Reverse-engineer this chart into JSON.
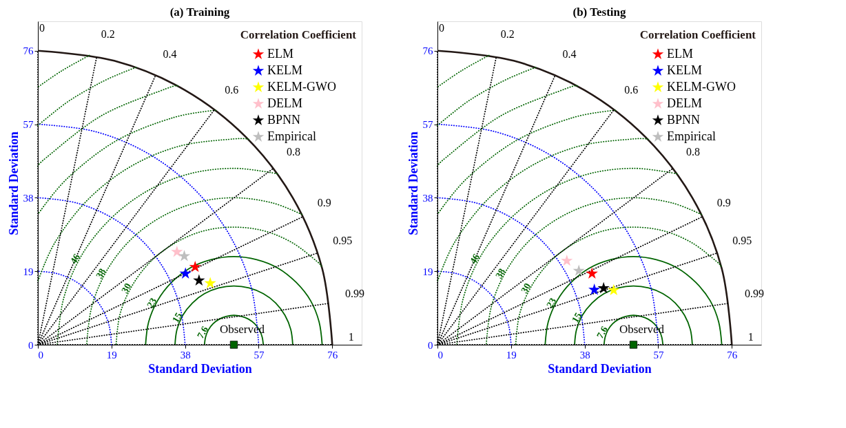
{
  "chart_data": [
    {
      "type": "scatter",
      "title": "(a) Training",
      "xlabel": "Standard Deviation",
      "ylabel": "Standard Deviation",
      "xlim": [
        0,
        83.6
      ],
      "ylim": [
        0,
        83.6
      ],
      "xticks": [
        0,
        19,
        38,
        57,
        76
      ],
      "yticks": [
        0,
        19,
        38,
        57,
        76
      ],
      "legend": "top right",
      "legend_title": "Correlation Coefficient",
      "marker": "star",
      "series": [
        {
          "type": "line",
          "marker": "none",
          "color": "#0000ff",
          "line_style": "dotted",
          "x": [
            19,
            18.4,
            16.5,
            13.4,
            9.5,
            4.9,
            0
          ],
          "values": [
            0,
            4.9,
            9.5,
            13.4,
            16.5,
            18.4,
            19
          ]
        },
        {
          "type": "line",
          "marker": "none",
          "color": "#0000ff",
          "line_style": "dotted",
          "x": [
            38,
            36.7,
            32.9,
            26.9,
            19,
            9.8,
            0
          ],
          "values": [
            0,
            9.8,
            19,
            26.9,
            32.9,
            36.7,
            38
          ]
        },
        {
          "type": "line",
          "marker": "none",
          "color": "#0000ff",
          "line_style": "dotted",
          "x": [
            57,
            55.1,
            49.4,
            40.3,
            28.5,
            14.8,
            0
          ],
          "values": [
            0,
            14.8,
            28.5,
            40.3,
            49.4,
            55.1,
            57
          ]
        },
        {
          "type": "line",
          "marker": "none",
          "name": "7.6",
          "color": "#006400",
          "line_style": "solid",
          "x": [
            58.2,
            57.9,
            57.2,
            56.0,
            54.4,
            52.6,
            50.6,
            48.6,
            46.8,
            45.2,
            44.0,
            43.3,
            43.0
          ],
          "values": [
            0,
            2.0,
            3.8,
            5.4,
            6.6,
            7.3,
            7.6,
            7.3,
            6.6,
            5.4,
            3.8,
            2.0,
            0
          ]
        },
        {
          "type": "line",
          "marker": "none",
          "name": "15",
          "color": "#006400",
          "line_style": "solid",
          "x": [
            65.8,
            65.3,
            63.8,
            61.4,
            58.2,
            54.5,
            50.6,
            46.7,
            43.0,
            39.9,
            37.4,
            35.9,
            35.4
          ],
          "values": [
            0,
            3.9,
            7.6,
            10.8,
            13.2,
            14.7,
            15.2,
            14.7,
            13.2,
            10.8,
            7.6,
            3.9,
            0
          ]
        },
        {
          "type": "line",
          "marker": "none",
          "name": "23",
          "color": "#006400",
          "line_style": "solid",
          "x": [
            73.4,
            72.6,
            70.4,
            66.7,
            62.0,
            56.5,
            50.6,
            44.7,
            39.2,
            34.5,
            30.9,
            28.6,
            27.8
          ],
          "values": [
            0,
            5.9,
            11.4,
            16.1,
            19.8,
            22.0,
            22.8,
            22.0,
            19.8,
            16.1,
            11.4,
            5.9,
            0
          ]
        },
        {
          "type": "line",
          "marker": "none",
          "name": "30",
          "color": "#006400",
          "line_style": "dotted",
          "x": [
            73.2,
            72.1,
            65.8,
            58.5,
            50.6,
            42.7,
            35.4,
            29.1,
            24.3,
            21.2,
            20.2
          ],
          "values": [
            20.3,
            21.5,
            26.3,
            29.4,
            30.4,
            29.4,
            26.3,
            21.5,
            15.2,
            7.9,
            0
          ]
        },
        {
          "type": "line",
          "marker": "none",
          "name": "38",
          "color": "#006400",
          "line_style": "dotted",
          "x": [
            68.1,
            60.4,
            50.6,
            40.8,
            31.6,
            23.7,
            17.7,
            13.9,
            12.6
          ],
          "values": [
            33.7,
            36.7,
            38,
            36.7,
            32.9,
            26.9,
            19,
            9.8,
            0
          ]
        },
        {
          "type": "line",
          "marker": "none",
          "name": "46",
          "color": "#006400",
          "line_style": "dotted",
          "x": [
            61.8,
            50.6,
            38.8,
            27.8,
            18.4,
            11.1,
            6.6,
            5.0
          ],
          "values": [
            44.2,
            45.6,
            44.1,
            39.5,
            32.2,
            22.8,
            11.8,
            0
          ]
        },
        {
          "type": "line",
          "marker": "none",
          "color": "#006400",
          "line_style": "dotted",
          "x": [
            54.4,
            50.6,
            36.8,
            24.0,
            13.0,
            4.5,
            0
          ],
          "values": [
            53.1,
            53.2,
            51.4,
            46.1,
            37.6,
            26.6,
            16.4
          ]
        },
        {
          "type": "line",
          "marker": "none",
          "color": "#006400",
          "line_style": "dotted",
          "x": [
            45.9,
            34.9,
            20.2,
            7.6,
            0
          ],
          "values": [
            60.6,
            58.7,
            52.7,
            43.0,
            33.7
          ]
        },
        {
          "type": "line",
          "marker": "none",
          "color": "#006400",
          "line_style": "dotted",
          "x": [
            36.1,
            32.9,
            16.4,
            2.2,
            0
          ],
          "values": [
            66.9,
            66.1,
            59.2,
            48.4,
            46.0
          ]
        },
        {
          "type": "line",
          "marker": "none",
          "color": "#006400",
          "line_style": "dotted",
          "x": [
            25.3,
            18.5,
            12.6,
            7.0,
            0
          ],
          "values": [
            71.7,
            68.9,
            65.8,
            62.3,
            56.7
          ]
        },
        {
          "type": "line",
          "marker": "none",
          "color": "#006400",
          "line_style": "dotted",
          "x": [
            13.3,
            6.3,
            0
          ],
          "values": [
            74.8,
            70.9,
            66.6
          ]
        },
        {
          "type": "line",
          "marker": "none",
          "name": "0",
          "color": "#000000",
          "line_style": "dotted",
          "x": [
            0,
            0
          ],
          "values": [
            0,
            76
          ]
        },
        {
          "type": "line",
          "marker": "none",
          "name": "0.2",
          "color": "#000000",
          "line_style": "dotted",
          "x": [
            0,
            15.2
          ],
          "values": [
            0,
            74.5
          ]
        },
        {
          "type": "line",
          "marker": "none",
          "name": "0.4",
          "color": "#000000",
          "line_style": "dotted",
          "x": [
            0,
            30.4
          ],
          "values": [
            0,
            69.7
          ]
        },
        {
          "type": "line",
          "marker": "none",
          "name": "0.6",
          "color": "#000000",
          "line_style": "dotted",
          "x": [
            0,
            45.6
          ],
          "values": [
            0,
            60.8
          ]
        },
        {
          "type": "line",
          "marker": "none",
          "name": "0.8",
          "color": "#000000",
          "line_style": "dotted",
          "x": [
            0,
            60.8
          ],
          "values": [
            0,
            45.6
          ]
        },
        {
          "type": "line",
          "marker": "none",
          "name": "0.9",
          "color": "#000000",
          "line_style": "dotted",
          "x": [
            0,
            68.4
          ],
          "values": [
            0,
            33.1
          ]
        },
        {
          "type": "line",
          "marker": "none",
          "name": "0.95",
          "color": "#000000",
          "line_style": "dotted",
          "x": [
            0,
            72.2
          ],
          "values": [
            0,
            23.7
          ]
        },
        {
          "type": "line",
          "marker": "none",
          "name": "0.99",
          "color": "#000000",
          "line_style": "dotted",
          "x": [
            0,
            75.2
          ],
          "values": [
            0,
            10.7
          ]
        },
        {
          "type": "line",
          "marker": "none",
          "name": "1",
          "color": "#000000",
          "line_style": "dotted",
          "x": [
            0,
            76
          ],
          "values": [
            0,
            0
          ]
        },
        {
          "type": "line",
          "marker": "none",
          "color": "#231815",
          "line_style": "solid",
          "x": [
            76,
            73.4,
            65.8,
            53.7,
            38,
            19.7,
            0
          ],
          "values": [
            0,
            19.7,
            38,
            53.7,
            65.8,
            73.4,
            76
          ]
        },
        {
          "name": "ELM",
          "color": "#ff0000",
          "x": [
            40.6
          ],
          "values": [
            20.1
          ]
        },
        {
          "name": "KELM",
          "color": "#0000ff",
          "x": [
            38.1
          ],
          "values": [
            18.4
          ]
        },
        {
          "name": "KELM-GWO",
          "color": "#ffff00",
          "x": [
            44.5
          ],
          "values": [
            15.9
          ]
        },
        {
          "name": "DELM",
          "color": "#ffc0cb",
          "x": [
            35.9
          ],
          "values": [
            24.0
          ]
        },
        {
          "name": "BPNN",
          "color": "#000000",
          "x": [
            41.6
          ],
          "values": [
            16.6
          ]
        },
        {
          "name": "Empirical",
          "color": "#bebebe",
          "x": [
            37.8
          ],
          "values": [
            22.9
          ]
        },
        {
          "name": "Observed",
          "color": "#006400",
          "marker": "square",
          "x": [
            50.6
          ],
          "values": [
            0
          ]
        }
      ]
    },
    {
      "type": "scatter",
      "title": "(b) Testing",
      "xlabel": "Standard Deviation",
      "ylabel": "Standard Deviation",
      "xlim": [
        0,
        83.6
      ],
      "ylim": [
        0,
        83.6
      ],
      "xticks": [
        0,
        19,
        38,
        57,
        76
      ],
      "yticks": [
        0,
        19,
        38,
        57,
        76
      ],
      "legend": "top right",
      "legend_title": "Correlation Coefficient",
      "marker": "star",
      "series": [
        {
          "type": "line",
          "marker": "none",
          "color": "#0000ff",
          "line_style": "dotted",
          "x": [
            19,
            18.4,
            16.5,
            13.4,
            9.5,
            4.9,
            0
          ],
          "values": [
            0,
            4.9,
            9.5,
            13.4,
            16.5,
            18.4,
            19
          ]
        },
        {
          "type": "line",
          "marker": "none",
          "color": "#0000ff",
          "line_style": "dotted",
          "x": [
            38,
            36.7,
            32.9,
            26.9,
            19,
            9.8,
            0
          ],
          "values": [
            0,
            9.8,
            19,
            26.9,
            32.9,
            36.7,
            38
          ]
        },
        {
          "type": "line",
          "marker": "none",
          "color": "#0000ff",
          "line_style": "dotted",
          "x": [
            57,
            55.1,
            49.4,
            40.3,
            28.5,
            14.8,
            0
          ],
          "values": [
            0,
            14.8,
            28.5,
            40.3,
            49.4,
            55.1,
            57
          ]
        },
        {
          "type": "line",
          "marker": "none",
          "name": "7.6",
          "color": "#006400",
          "line_style": "solid",
          "x": [
            58.2,
            57.9,
            57.2,
            56.0,
            54.4,
            52.6,
            50.6,
            48.6,
            46.8,
            45.2,
            44.0,
            43.3,
            43.0
          ],
          "values": [
            0,
            2.0,
            3.8,
            5.4,
            6.6,
            7.3,
            7.6,
            7.3,
            6.6,
            5.4,
            3.8,
            2.0,
            0
          ]
        },
        {
          "type": "line",
          "marker": "none",
          "name": "15",
          "color": "#006400",
          "line_style": "solid",
          "x": [
            65.8,
            65.3,
            63.8,
            61.4,
            58.2,
            54.5,
            50.6,
            46.7,
            43.0,
            39.9,
            37.4,
            35.9,
            35.4
          ],
          "values": [
            0,
            3.9,
            7.6,
            10.8,
            13.2,
            14.7,
            15.2,
            14.7,
            13.2,
            10.8,
            7.6,
            3.9,
            0
          ]
        },
        {
          "type": "line",
          "marker": "none",
          "name": "23",
          "color": "#006400",
          "line_style": "solid",
          "x": [
            73.4,
            72.6,
            70.4,
            66.7,
            62.0,
            56.5,
            50.6,
            44.7,
            39.2,
            34.5,
            30.9,
            28.6,
            27.8
          ],
          "values": [
            0,
            5.9,
            11.4,
            16.1,
            19.8,
            22.0,
            22.8,
            22.0,
            19.8,
            16.1,
            11.4,
            5.9,
            0
          ]
        },
        {
          "type": "line",
          "marker": "none",
          "name": "30",
          "color": "#006400",
          "line_style": "dotted",
          "x": [
            73.2,
            72.1,
            65.8,
            58.5,
            50.6,
            42.7,
            35.4,
            29.1,
            24.3,
            21.2,
            20.2
          ],
          "values": [
            20.3,
            21.5,
            26.3,
            29.4,
            30.4,
            29.4,
            26.3,
            21.5,
            15.2,
            7.9,
            0
          ]
        },
        {
          "type": "line",
          "marker": "none",
          "name": "38",
          "color": "#006400",
          "line_style": "dotted",
          "x": [
            68.1,
            60.4,
            50.6,
            40.8,
            31.6,
            23.7,
            17.7,
            13.9,
            12.6
          ],
          "values": [
            33.7,
            36.7,
            38,
            36.7,
            32.9,
            26.9,
            19,
            9.8,
            0
          ]
        },
        {
          "type": "line",
          "marker": "none",
          "name": "46",
          "color": "#006400",
          "line_style": "dotted",
          "x": [
            61.8,
            50.6,
            38.8,
            27.8,
            18.4,
            11.1,
            6.6,
            5.0
          ],
          "values": [
            44.2,
            45.6,
            44.1,
            39.5,
            32.2,
            22.8,
            11.8,
            0
          ]
        },
        {
          "type": "line",
          "marker": "none",
          "color": "#006400",
          "line_style": "dotted",
          "x": [
            54.4,
            50.6,
            36.8,
            24.0,
            13.0,
            4.5,
            0
          ],
          "values": [
            53.1,
            53.2,
            51.4,
            46.1,
            37.6,
            26.6,
            16.4
          ]
        },
        {
          "type": "line",
          "marker": "none",
          "color": "#006400",
          "line_style": "dotted",
          "x": [
            45.9,
            34.9,
            20.2,
            7.6,
            0
          ],
          "values": [
            60.6,
            58.7,
            52.7,
            43.0,
            33.7
          ]
        },
        {
          "type": "line",
          "marker": "none",
          "color": "#006400",
          "line_style": "dotted",
          "x": [
            36.1,
            32.9,
            16.4,
            2.2,
            0
          ],
          "values": [
            66.9,
            66.1,
            59.2,
            48.4,
            46.0
          ]
        },
        {
          "type": "line",
          "marker": "none",
          "color": "#006400",
          "line_style": "dotted",
          "x": [
            25.3,
            18.5,
            12.6,
            7.0,
            0
          ],
          "values": [
            71.7,
            68.9,
            65.8,
            62.3,
            56.7
          ]
        },
        {
          "type": "line",
          "marker": "none",
          "color": "#006400",
          "line_style": "dotted",
          "x": [
            13.3,
            6.3,
            0
          ],
          "values": [
            74.8,
            70.9,
            66.6
          ]
        },
        {
          "type": "line",
          "marker": "none",
          "name": "0",
          "color": "#000000",
          "line_style": "dotted",
          "x": [
            0,
            0
          ],
          "values": [
            0,
            76
          ]
        },
        {
          "type": "line",
          "marker": "none",
          "name": "0.2",
          "color": "#000000",
          "line_style": "dotted",
          "x": [
            0,
            15.2
          ],
          "values": [
            0,
            74.5
          ]
        },
        {
          "type": "line",
          "marker": "none",
          "name": "0.4",
          "color": "#000000",
          "line_style": "dotted",
          "x": [
            0,
            30.4
          ],
          "values": [
            0,
            69.7
          ]
        },
        {
          "type": "line",
          "marker": "none",
          "name": "0.6",
          "color": "#000000",
          "line_style": "dotted",
          "x": [
            0,
            45.6
          ],
          "values": [
            0,
            60.8
          ]
        },
        {
          "type": "line",
          "marker": "none",
          "name": "0.8",
          "color": "#000000",
          "line_style": "dotted",
          "x": [
            0,
            60.8
          ],
          "values": [
            0,
            45.6
          ]
        },
        {
          "type": "line",
          "marker": "none",
          "name": "0.9",
          "color": "#000000",
          "line_style": "dotted",
          "x": [
            0,
            68.4
          ],
          "values": [
            0,
            33.1
          ]
        },
        {
          "type": "line",
          "marker": "none",
          "name": "0.95",
          "color": "#000000",
          "line_style": "dotted",
          "x": [
            0,
            72.2
          ],
          "values": [
            0,
            23.7
          ]
        },
        {
          "type": "line",
          "marker": "none",
          "name": "0.99",
          "color": "#000000",
          "line_style": "dotted",
          "x": [
            0,
            75.2
          ],
          "values": [
            0,
            10.7
          ]
        },
        {
          "type": "line",
          "marker": "none",
          "name": "1",
          "color": "#000000",
          "line_style": "dotted",
          "x": [
            0,
            76
          ],
          "values": [
            0,
            0
          ]
        },
        {
          "type": "line",
          "marker": "none",
          "color": "#231815",
          "line_style": "solid",
          "x": [
            76,
            73.4,
            65.8,
            53.7,
            38,
            19.7,
            0
          ],
          "values": [
            0,
            19.7,
            38,
            53.7,
            65.8,
            73.4,
            76
          ]
        },
        {
          "name": "ELM",
          "color": "#ff0000",
          "x": [
            39.9
          ],
          "values": [
            18.4
          ]
        },
        {
          "name": "KELM",
          "color": "#0000ff",
          "x": [
            40.5
          ],
          "values": [
            14.2
          ]
        },
        {
          "name": "KELM-GWO",
          "color": "#ffff00",
          "x": [
            45.5
          ],
          "values": [
            14.1
          ]
        },
        {
          "name": "DELM",
          "color": "#ffc0cb",
          "x": [
            33.4
          ],
          "values": [
            21.7
          ]
        },
        {
          "name": "BPNN",
          "color": "#000000",
          "x": [
            42.9
          ],
          "values": [
            14.6
          ]
        },
        {
          "name": "Empirical",
          "color": "#bebebe",
          "x": [
            36.5
          ],
          "values": [
            19.1
          ]
        },
        {
          "name": "Observed",
          "color": "#006400",
          "marker": "square",
          "x": [
            50.6
          ],
          "values": [
            0
          ]
        }
      ]
    }
  ]
}
